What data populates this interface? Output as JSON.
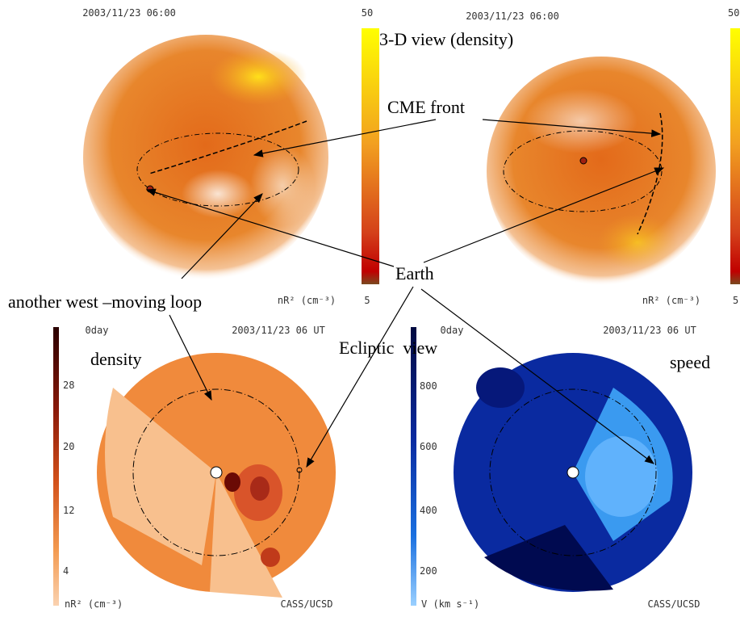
{
  "panels": [
    {
      "timestamp": "2003/11/23 06:00",
      "scale_top": "50",
      "scale_bottom": "5",
      "units": "nR² (cm⁻³)"
    },
    {
      "timestamp": "2003/11/23 06:00",
      "scale_top": "50",
      "scale_bottom": "5",
      "units": "nR² (cm⁻³)"
    },
    {
      "day": "0day",
      "timestamp": "2003/11/23 06 UT",
      "scale_labels": [
        "28",
        "20",
        "12",
        "4"
      ],
      "units": "nR² (cm⁻³)",
      "credit": "CASS/UCSD"
    },
    {
      "day": "0day",
      "timestamp": "2003/11/23 06 UT",
      "scale_labels": [
        "800",
        "600",
        "400",
        "200"
      ],
      "units": "V (km s⁻¹)",
      "credit": "CASS/UCSD"
    }
  ],
  "annotations": {
    "view_3d": "3-D view (density)",
    "cme_front": "CME front",
    "earth": "Earth",
    "loop": "another west –moving loop",
    "ecliptic": "Ecliptic  view",
    "density": "density",
    "speed": "speed"
  }
}
